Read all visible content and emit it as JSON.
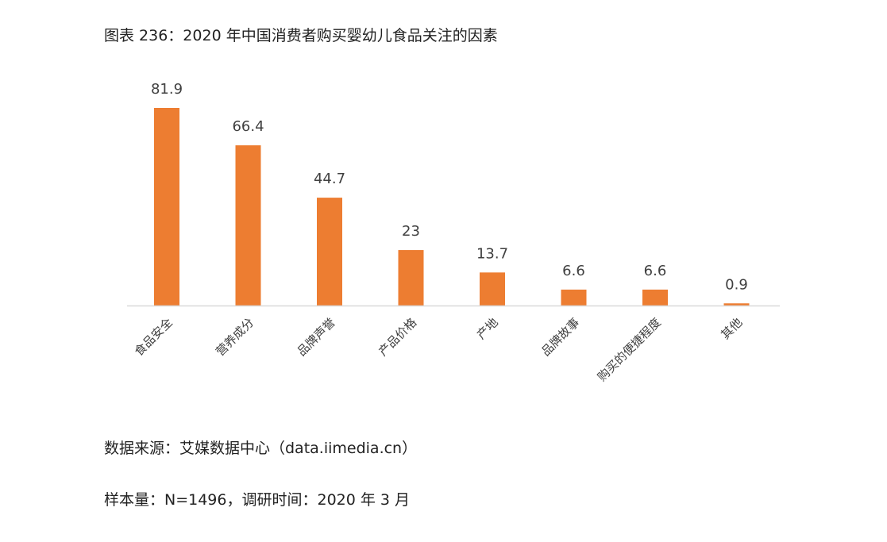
{
  "title": "图表 236：2020 年中国消费者购买婴幼儿食品关注的因素",
  "source": "数据来源：艾媒数据中心（data.iimedia.cn）",
  "sample": "样本量：N=1496，调研时间：2020 年 3 月",
  "colors": {
    "bar": "#ED7D31",
    "axis": "#D9D9D9",
    "label": "#404040"
  },
  "chart_data": {
    "type": "bar",
    "categories": [
      "食品安全",
      "营养成分",
      "品牌声誉",
      "产品价格",
      "产地",
      "品牌故事",
      "购买的便捷程度",
      "其他"
    ],
    "values": [
      81.9,
      66.4,
      44.7,
      23,
      13.7,
      6.6,
      6.6,
      0.9
    ],
    "value_labels": [
      "81.9",
      "66.4",
      "44.7",
      "23",
      "13.7",
      "6.6",
      "6.6",
      "0.9"
    ],
    "ylim": [
      0,
      81.9
    ],
    "grid": false,
    "legend": "none"
  }
}
